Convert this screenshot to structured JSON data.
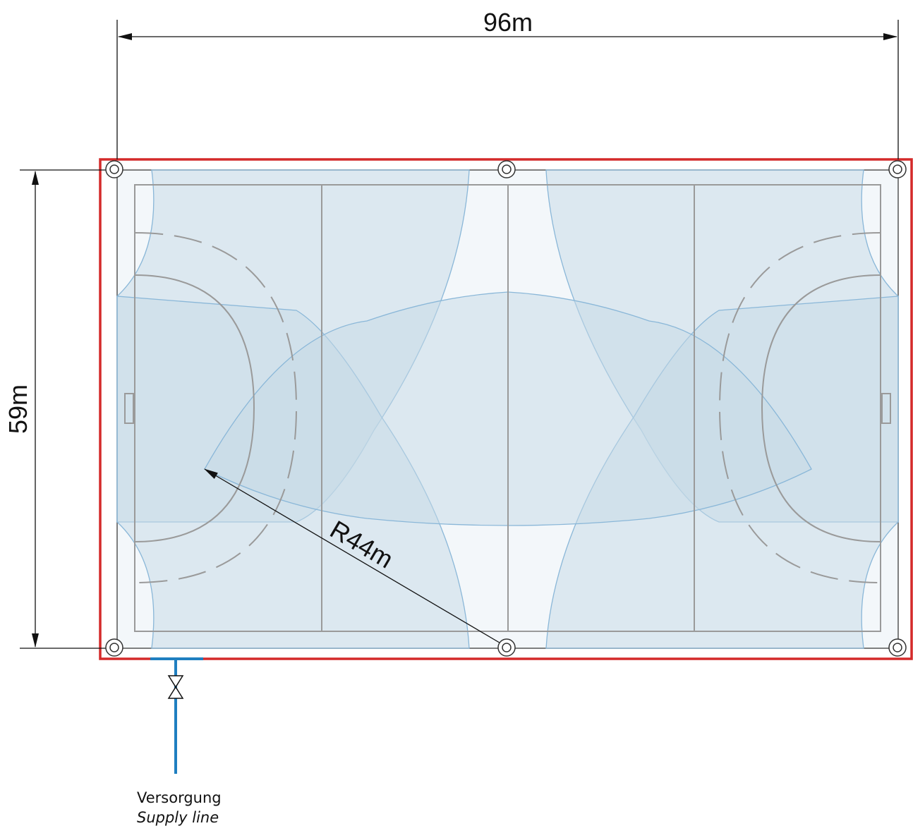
{
  "dimensions": {
    "width_label": "96m",
    "height_label": "59m",
    "radius_label": "R44m"
  },
  "supply": {
    "label_de": "Versorgung",
    "label_en": "Supply line"
  },
  "sprinklers": [
    {
      "name": "sprinkler-top-left"
    },
    {
      "name": "sprinkler-top-center"
    },
    {
      "name": "sprinkler-top-right"
    },
    {
      "name": "sprinkler-bottom-left"
    },
    {
      "name": "sprinkler-bottom-center"
    },
    {
      "name": "sprinkler-bottom-right"
    }
  ],
  "colors": {
    "boundary": "#d42a2a",
    "coverage_fill": "#c6d9e6",
    "coverage_stroke": "#8ab7d8",
    "pipe": "#1f7fc0",
    "field_lines": "#9a9a9a"
  }
}
